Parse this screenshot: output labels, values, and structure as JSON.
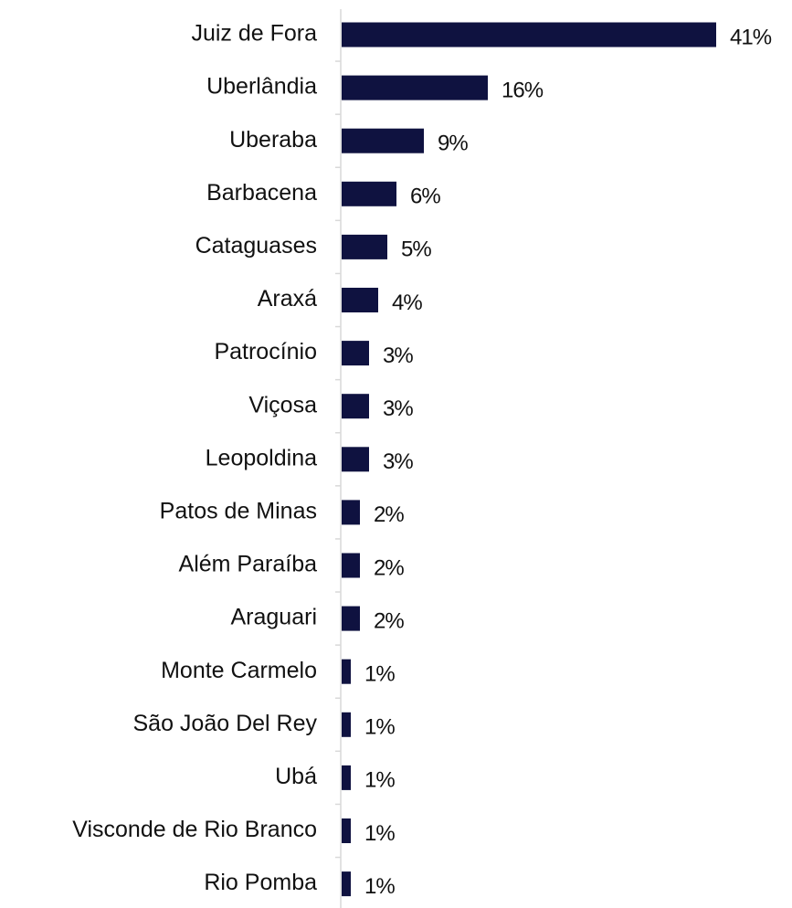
{
  "chart_data": {
    "type": "bar",
    "orientation": "horizontal",
    "categories": [
      "Juiz de Fora",
      "Uberlândia",
      "Uberaba",
      "Barbacena",
      "Cataguases",
      "Araxá",
      "Patrocínio",
      "Viçosa",
      "Leopoldina",
      "Patos de Minas",
      "Além Paraíba",
      "Araguari",
      "Monte Carmelo",
      "São João Del Rey",
      "Ubá",
      "Visconde de Rio Branco",
      "Rio Pomba"
    ],
    "values": [
      41,
      16,
      9,
      6,
      5,
      4,
      3,
      3,
      3,
      2,
      2,
      2,
      1,
      1,
      1,
      1,
      1
    ],
    "value_labels": [
      "41%",
      "16%",
      "9%",
      "6%",
      "5%",
      "4%",
      "3%",
      "3%",
      "3%",
      "2%",
      "2%",
      "2%",
      "1%",
      "1%",
      "1%",
      "1%",
      "1%"
    ],
    "unit": "%",
    "bar_color": "#0f1240",
    "axis_color": "#d9d9d9",
    "grid": false,
    "legend": "none",
    "xlim": [
      0,
      41
    ]
  }
}
